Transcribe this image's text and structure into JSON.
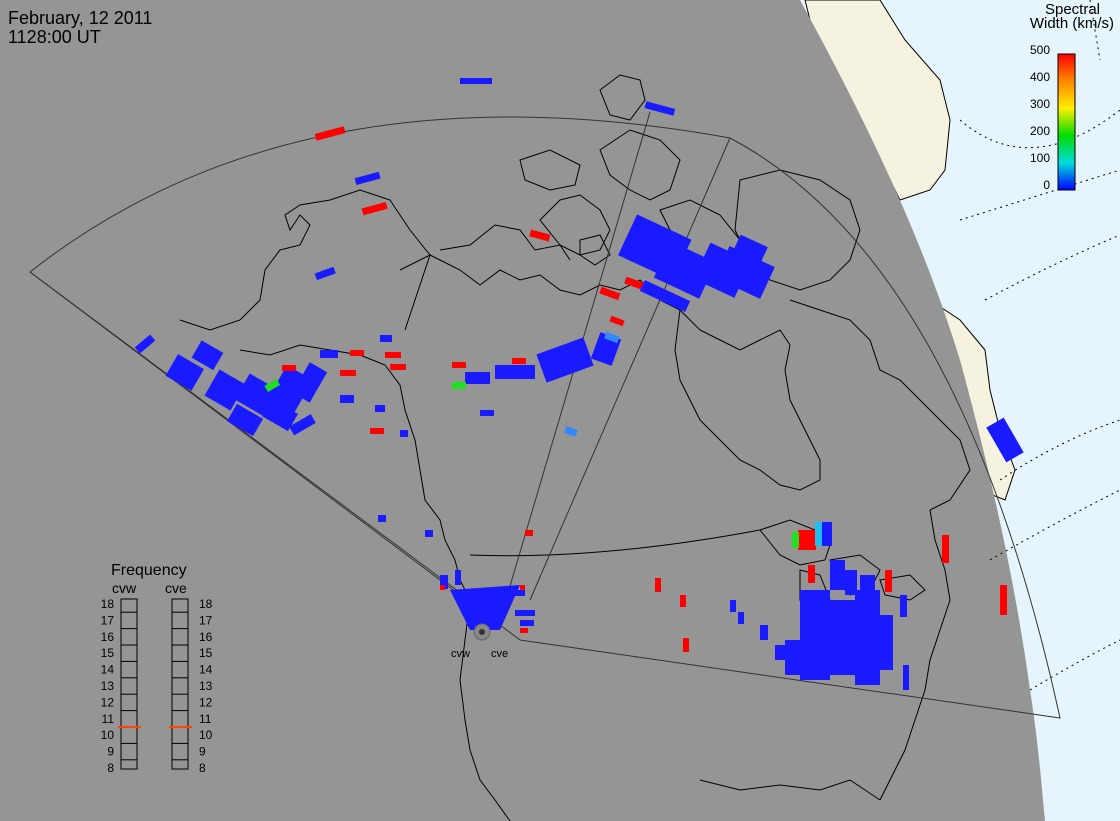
{
  "header": {
    "date": "February, 12 2011",
    "time": "1128:00 UT"
  },
  "colorbar": {
    "title_line1": "Spectral",
    "title_line2": "Width (km/s)",
    "ticks": [
      "500",
      "400",
      "300",
      "200",
      "100",
      "0"
    ],
    "colors": [
      "#ff0000",
      "#ff8800",
      "#ffee00",
      "#00dd00",
      "#00dddd",
      "#0000ff"
    ]
  },
  "frequency_panel": {
    "title": "Frequency",
    "radar_left": "cvw",
    "radar_right": "cve",
    "scale": [
      "18",
      "17",
      "16",
      "15",
      "14",
      "13",
      "12",
      "11",
      "10",
      "9",
      "8"
    ],
    "cvw_value_mhz": 10.5,
    "cve_value_mhz": 10.5,
    "marker_color": "#ff4400"
  },
  "radar_sites": {
    "left_label": "cvw",
    "right_label": "cve"
  },
  "map": {
    "land_color": "#f5f2e0",
    "ocean_color": "#e6f4fb",
    "night_color": "#959595",
    "coastline_color": "#000000"
  }
}
